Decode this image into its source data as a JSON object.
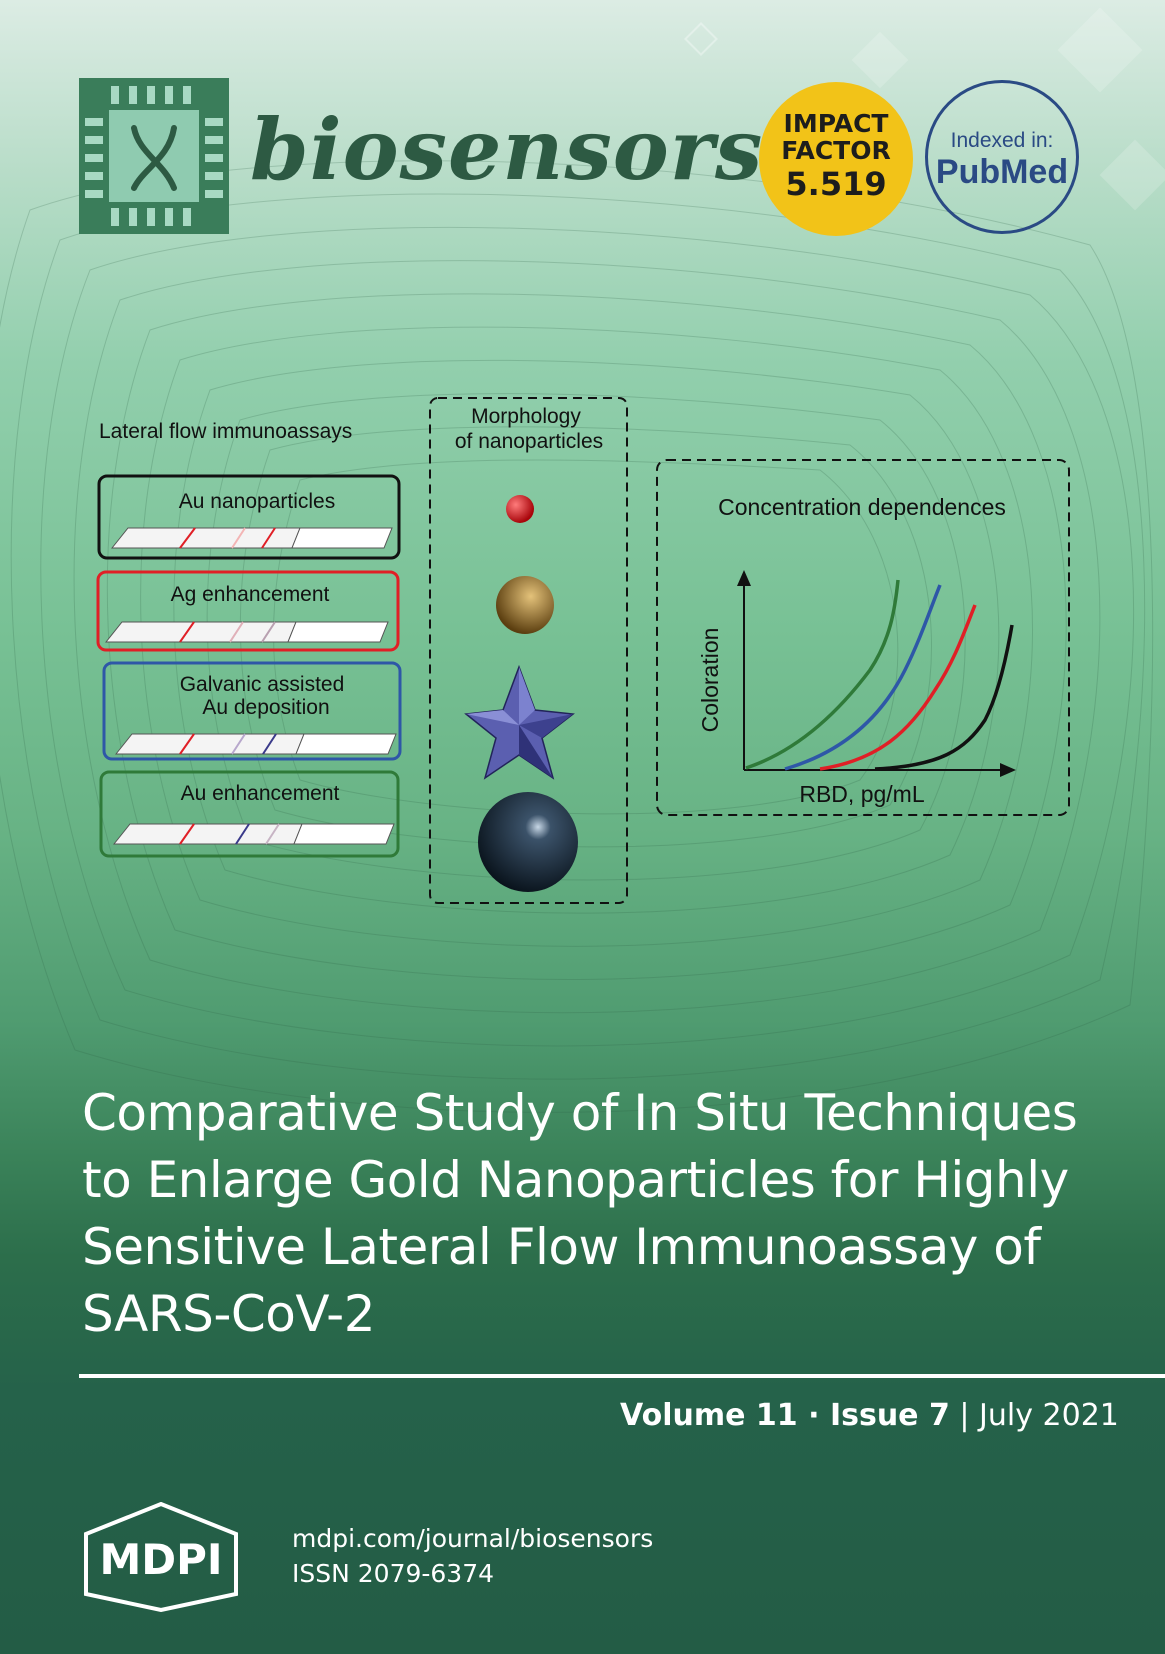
{
  "journal": {
    "name": "biosensors"
  },
  "impact_factor": {
    "line1": "IMPACT",
    "line2": "FACTOR",
    "value": "5.519"
  },
  "pubmed": {
    "indexed_label": "Indexed in:",
    "name": "PubMed"
  },
  "figure": {
    "lfa_heading": "Lateral flow immunoassays",
    "strips": [
      {
        "label": "Au nanoparticles",
        "label_line2": ""
      },
      {
        "label": "Ag enhancement",
        "label_line2": ""
      },
      {
        "label": "Galvanic assisted",
        "label_line2": "Au deposition"
      },
      {
        "label": "Au enhancement",
        "label_line2": ""
      }
    ],
    "morphology_heading_line1": "Morphology",
    "morphology_heading_line2": "of nanoparticles",
    "concentration_heading": "Concentration dependences",
    "y_axis_label": "Coloration",
    "x_axis_label": "RBD, pg/mL"
  },
  "colors": {
    "strip_black": "#111111",
    "strip_red": "#e01f26",
    "strip_blue": "#2e57a7",
    "strip_green": "#2f7a39"
  },
  "article": {
    "title_lines": [
      "Comparative Study of In Situ Techniques",
      "to Enlarge Gold Nanoparticles for Highly",
      "Sensitive Lateral Flow Immunoassay of",
      "SARS-CoV-2"
    ]
  },
  "issue": {
    "volume": "Volume 11",
    "separator": " · ",
    "issue": "Issue 7",
    "divider": " | ",
    "date": "July 2021"
  },
  "publisher": {
    "logo_text": "MDPI",
    "url": "mdpi.com/journal/biosensors",
    "issn": "ISSN 2079-6374"
  }
}
